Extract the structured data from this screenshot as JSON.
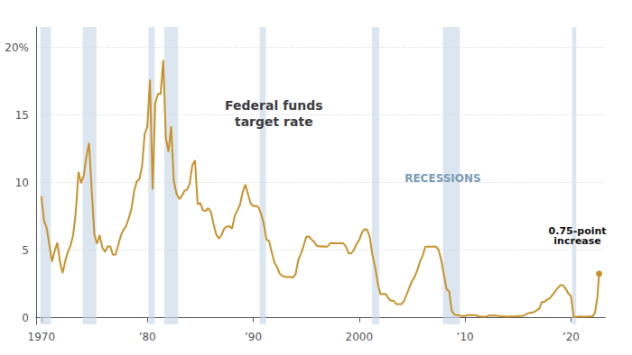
{
  "chart_data": {
    "type": "line",
    "title": "Federal funds\ntarget rate",
    "color": "#C9922A",
    "x": [
      1970,
      1970.25,
      1970.5,
      1970.75,
      1971,
      1971.25,
      1971.5,
      1971.75,
      1972,
      1972.25,
      1972.5,
      1972.75,
      1973,
      1973.25,
      1973.5,
      1973.75,
      1974,
      1974.25,
      1974.5,
      1974.75,
      1975,
      1975.25,
      1975.5,
      1975.75,
      1976,
      1976.25,
      1976.5,
      1976.75,
      1977,
      1977.25,
      1977.5,
      1977.75,
      1978,
      1978.25,
      1978.5,
      1978.75,
      1979,
      1979.25,
      1979.5,
      1979.75,
      1980,
      1980.25,
      1980.5,
      1980.75,
      1981,
      1981.25,
      1981.5,
      1981.75,
      1982,
      1982.25,
      1982.5,
      1982.75,
      1983,
      1983.25,
      1983.5,
      1983.75,
      1984,
      1984.25,
      1984.5,
      1984.75,
      1985,
      1985.25,
      1985.5,
      1985.75,
      1986,
      1986.25,
      1986.5,
      1986.75,
      1987,
      1987.25,
      1987.5,
      1987.75,
      1988,
      1988.25,
      1988.5,
      1988.75,
      1989,
      1989.25,
      1989.5,
      1989.75,
      1990,
      1990.25,
      1990.5,
      1990.75,
      1991,
      1991.25,
      1991.5,
      1991.75,
      1992,
      1992.25,
      1992.5,
      1992.75,
      1993,
      1993.25,
      1993.5,
      1993.75,
      1994,
      1994.25,
      1994.5,
      1994.75,
      1995,
      1995.25,
      1995.5,
      1995.75,
      1996,
      1996.25,
      1996.5,
      1996.75,
      1997,
      1997.25,
      1997.5,
      1997.75,
      1998,
      1998.25,
      1998.5,
      1998.75,
      1999,
      1999.25,
      1999.5,
      1999.75,
      2000,
      2000.25,
      2000.5,
      2000.75,
      2001,
      2001.25,
      2001.5,
      2001.75,
      2002,
      2002.25,
      2002.5,
      2002.75,
      2003,
      2003.25,
      2003.5,
      2003.75,
      2004,
      2004.25,
      2004.5,
      2004.75,
      2005,
      2005.25,
      2005.5,
      2005.75,
      2006,
      2006.25,
      2006.5,
      2006.75,
      2007,
      2007.25,
      2007.5,
      2007.75,
      2008,
      2008.25,
      2008.5,
      2008.75,
      2009,
      2009.25,
      2009.5,
      2009.75,
      2010,
      2010.25,
      2010.5,
      2010.75,
      2011,
      2011.25,
      2011.5,
      2011.75,
      2012,
      2012.25,
      2012.5,
      2012.75,
      2013,
      2013.25,
      2013.5,
      2013.75,
      2014,
      2014.25,
      2014.5,
      2014.75,
      2015,
      2015.25,
      2015.5,
      2015.75,
      2016,
      2016.25,
      2016.5,
      2016.75,
      2017,
      2017.25,
      2017.5,
      2017.75,
      2018,
      2018.25,
      2018.5,
      2018.75,
      2019,
      2019.25,
      2019.5,
      2019.75,
      2020,
      2020.25,
      2020.5,
      2020.75,
      2021,
      2021.25,
      2021.5,
      2021.75,
      2022,
      2022.25,
      2022.5,
      2022.65
    ],
    "values": [
      8.98,
      7.18,
      6.62,
      5.38,
      4.14,
      4.91,
      5.55,
      4.14,
      3.29,
      4.18,
      4.87,
      5.33,
      6.12,
      7.83,
      10.78,
      9.95,
      10.51,
      11.94,
      12.92,
      9.43,
      6.12,
      5.47,
      6.11,
      5.19,
      4.86,
      5.27,
      5.27,
      4.65,
      4.67,
      5.35,
      6.07,
      6.51,
      6.78,
      7.36,
      8.04,
      9.35,
      10.07,
      10.25,
      11.18,
      13.58,
      14.13,
      17.61,
      9.47,
      15.85,
      16.57,
      16.54,
      19.04,
      13.31,
      12.26,
      14.15,
      10.12,
      9.2,
      8.77,
      8.98,
      9.37,
      9.47,
      9.91,
      11.29,
      11.64,
      8.38,
      8.48,
      7.94,
      7.9,
      8.1,
      7.83,
      6.92,
      6.17,
      5.85,
      6.1,
      6.58,
      6.73,
      6.77,
      6.58,
      7.52,
      7.94,
      8.35,
      9.28,
      9.85,
      9.15,
      8.45,
      8.25,
      8.27,
      8.15,
      7.66,
      6.91,
      5.78,
      5.66,
      4.81,
      4.06,
      3.73,
      3.25,
      3.09,
      3.02,
      3.0,
      3.02,
      2.96,
      3.22,
      4.25,
      4.73,
      5.29,
      5.98,
      6.0,
      5.79,
      5.6,
      5.31,
      5.27,
      5.29,
      5.25,
      5.25,
      5.5,
      5.52,
      5.5,
      5.5,
      5.5,
      5.5,
      5.25,
      4.75,
      4.75,
      5.0,
      5.45,
      5.73,
      6.27,
      6.54,
      6.51,
      5.98,
      4.64,
      3.77,
      2.56,
      1.73,
      1.75,
      1.75,
      1.43,
      1.25,
      1.25,
      1.0,
      1.0,
      1.0,
      1.25,
      1.75,
      2.25,
      2.73,
      3.04,
      3.54,
      4.16,
      4.59,
      5.25,
      5.25,
      5.25,
      5.26,
      5.25,
      5.02,
      4.24,
      3.18,
      2.09,
      1.94,
      0.47,
      0.22,
      0.18,
      0.15,
      0.12,
      0.11,
      0.2,
      0.19,
      0.19,
      0.16,
      0.1,
      0.07,
      0.07,
      0.07,
      0.16,
      0.14,
      0.16,
      0.14,
      0.11,
      0.09,
      0.09,
      0.07,
      0.09,
      0.09,
      0.09,
      0.11,
      0.12,
      0.14,
      0.24,
      0.34,
      0.37,
      0.4,
      0.54,
      0.66,
      1.16,
      1.16,
      1.33,
      1.42,
      1.69,
      1.92,
      2.2,
      2.4,
      2.4,
      2.13,
      1.78,
      1.58,
      0.05,
      0.05,
      0.09,
      0.07,
      0.06,
      0.07,
      0.08,
      0.08,
      0.33,
      1.58,
      3.25
    ],
    "xlim": [
      1969.5,
      2023.2
    ],
    "xticks": [
      1970,
      {
        "value": 1980,
        "label": "’80"
      },
      {
        "value": 1990,
        "label": "’90"
      },
      2000,
      {
        "value": 2010,
        "label": "’10"
      },
      {
        "value": 2020,
        "label": "’20"
      }
    ],
    "ylim": [
      -0.5,
      21.5
    ],
    "yticks": [
      0,
      5,
      10,
      15,
      {
        "value": 20,
        "label": "20%"
      }
    ],
    "grid": true,
    "recessions": [
      [
        1969.9,
        1970.9
      ],
      [
        1973.9,
        1975.2
      ],
      [
        1980.1,
        1980.7
      ],
      [
        1981.6,
        1982.9
      ],
      [
        1990.6,
        1991.2
      ],
      [
        2001.2,
        2001.9
      ],
      [
        2007.9,
        2009.5
      ],
      [
        2020.1,
        2020.5
      ]
    ],
    "annotations": [
      "RECESSIONS",
      "0.75-point\nincrease"
    ]
  }
}
